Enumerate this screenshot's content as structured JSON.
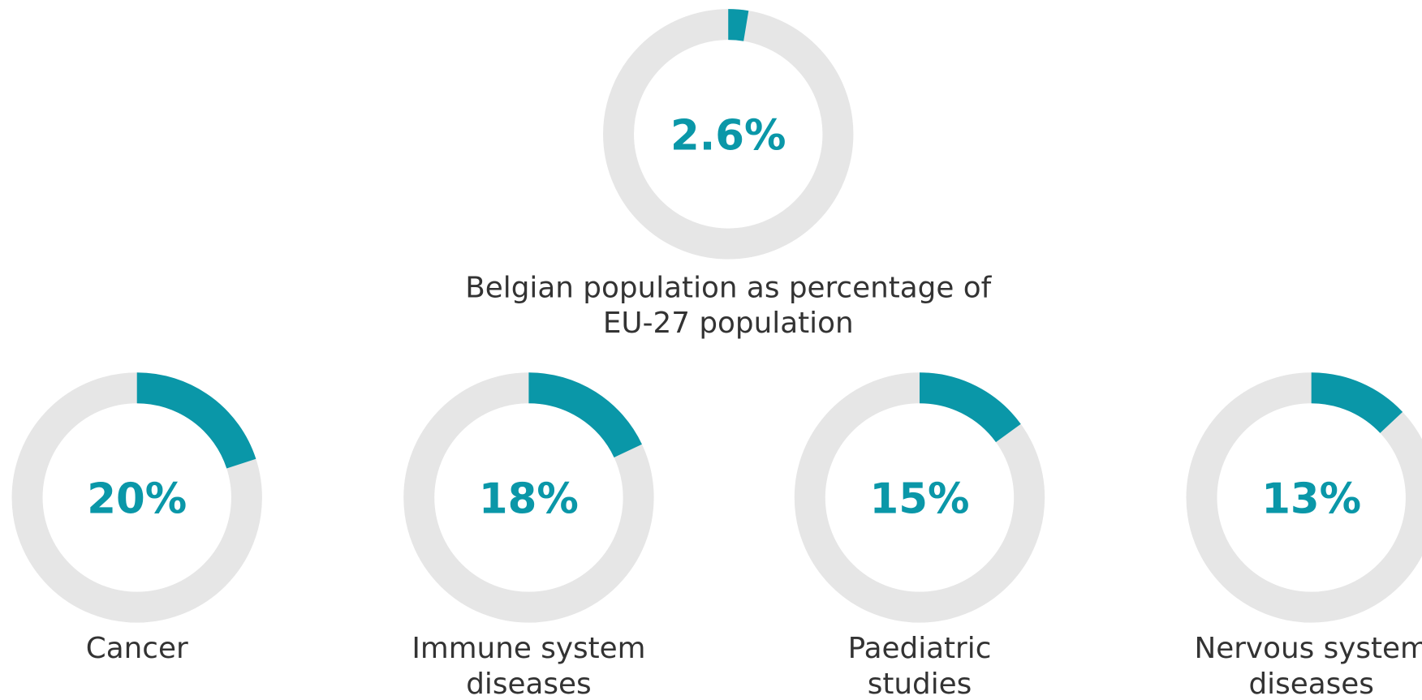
{
  "chart_data": [
    {
      "type": "donut",
      "title": "Belgian population as percentage of EU-27 population",
      "values": [
        2.6
      ],
      "value_labels": [
        "2.6%"
      ],
      "color": "#0a97a8",
      "track_color": "#e6e6e6"
    },
    {
      "type": "donut",
      "title": "Cancer",
      "values": [
        20
      ],
      "value_labels": [
        "20%"
      ],
      "color": "#0a97a8",
      "track_color": "#e6e6e6"
    },
    {
      "type": "donut",
      "title": "Immune system diseases",
      "values": [
        18
      ],
      "value_labels": [
        "18%"
      ],
      "color": "#0a97a8",
      "track_color": "#e6e6e6"
    },
    {
      "type": "donut",
      "title": "Paediatric studies",
      "values": [
        15
      ],
      "value_labels": [
        "15%"
      ],
      "color": "#0a97a8",
      "track_color": "#e6e6e6"
    },
    {
      "type": "donut",
      "title": "Nervous system diseases",
      "values": [
        13
      ],
      "value_labels": [
        "13%"
      ],
      "color": "#0a97a8",
      "track_color": "#e6e6e6"
    }
  ]
}
